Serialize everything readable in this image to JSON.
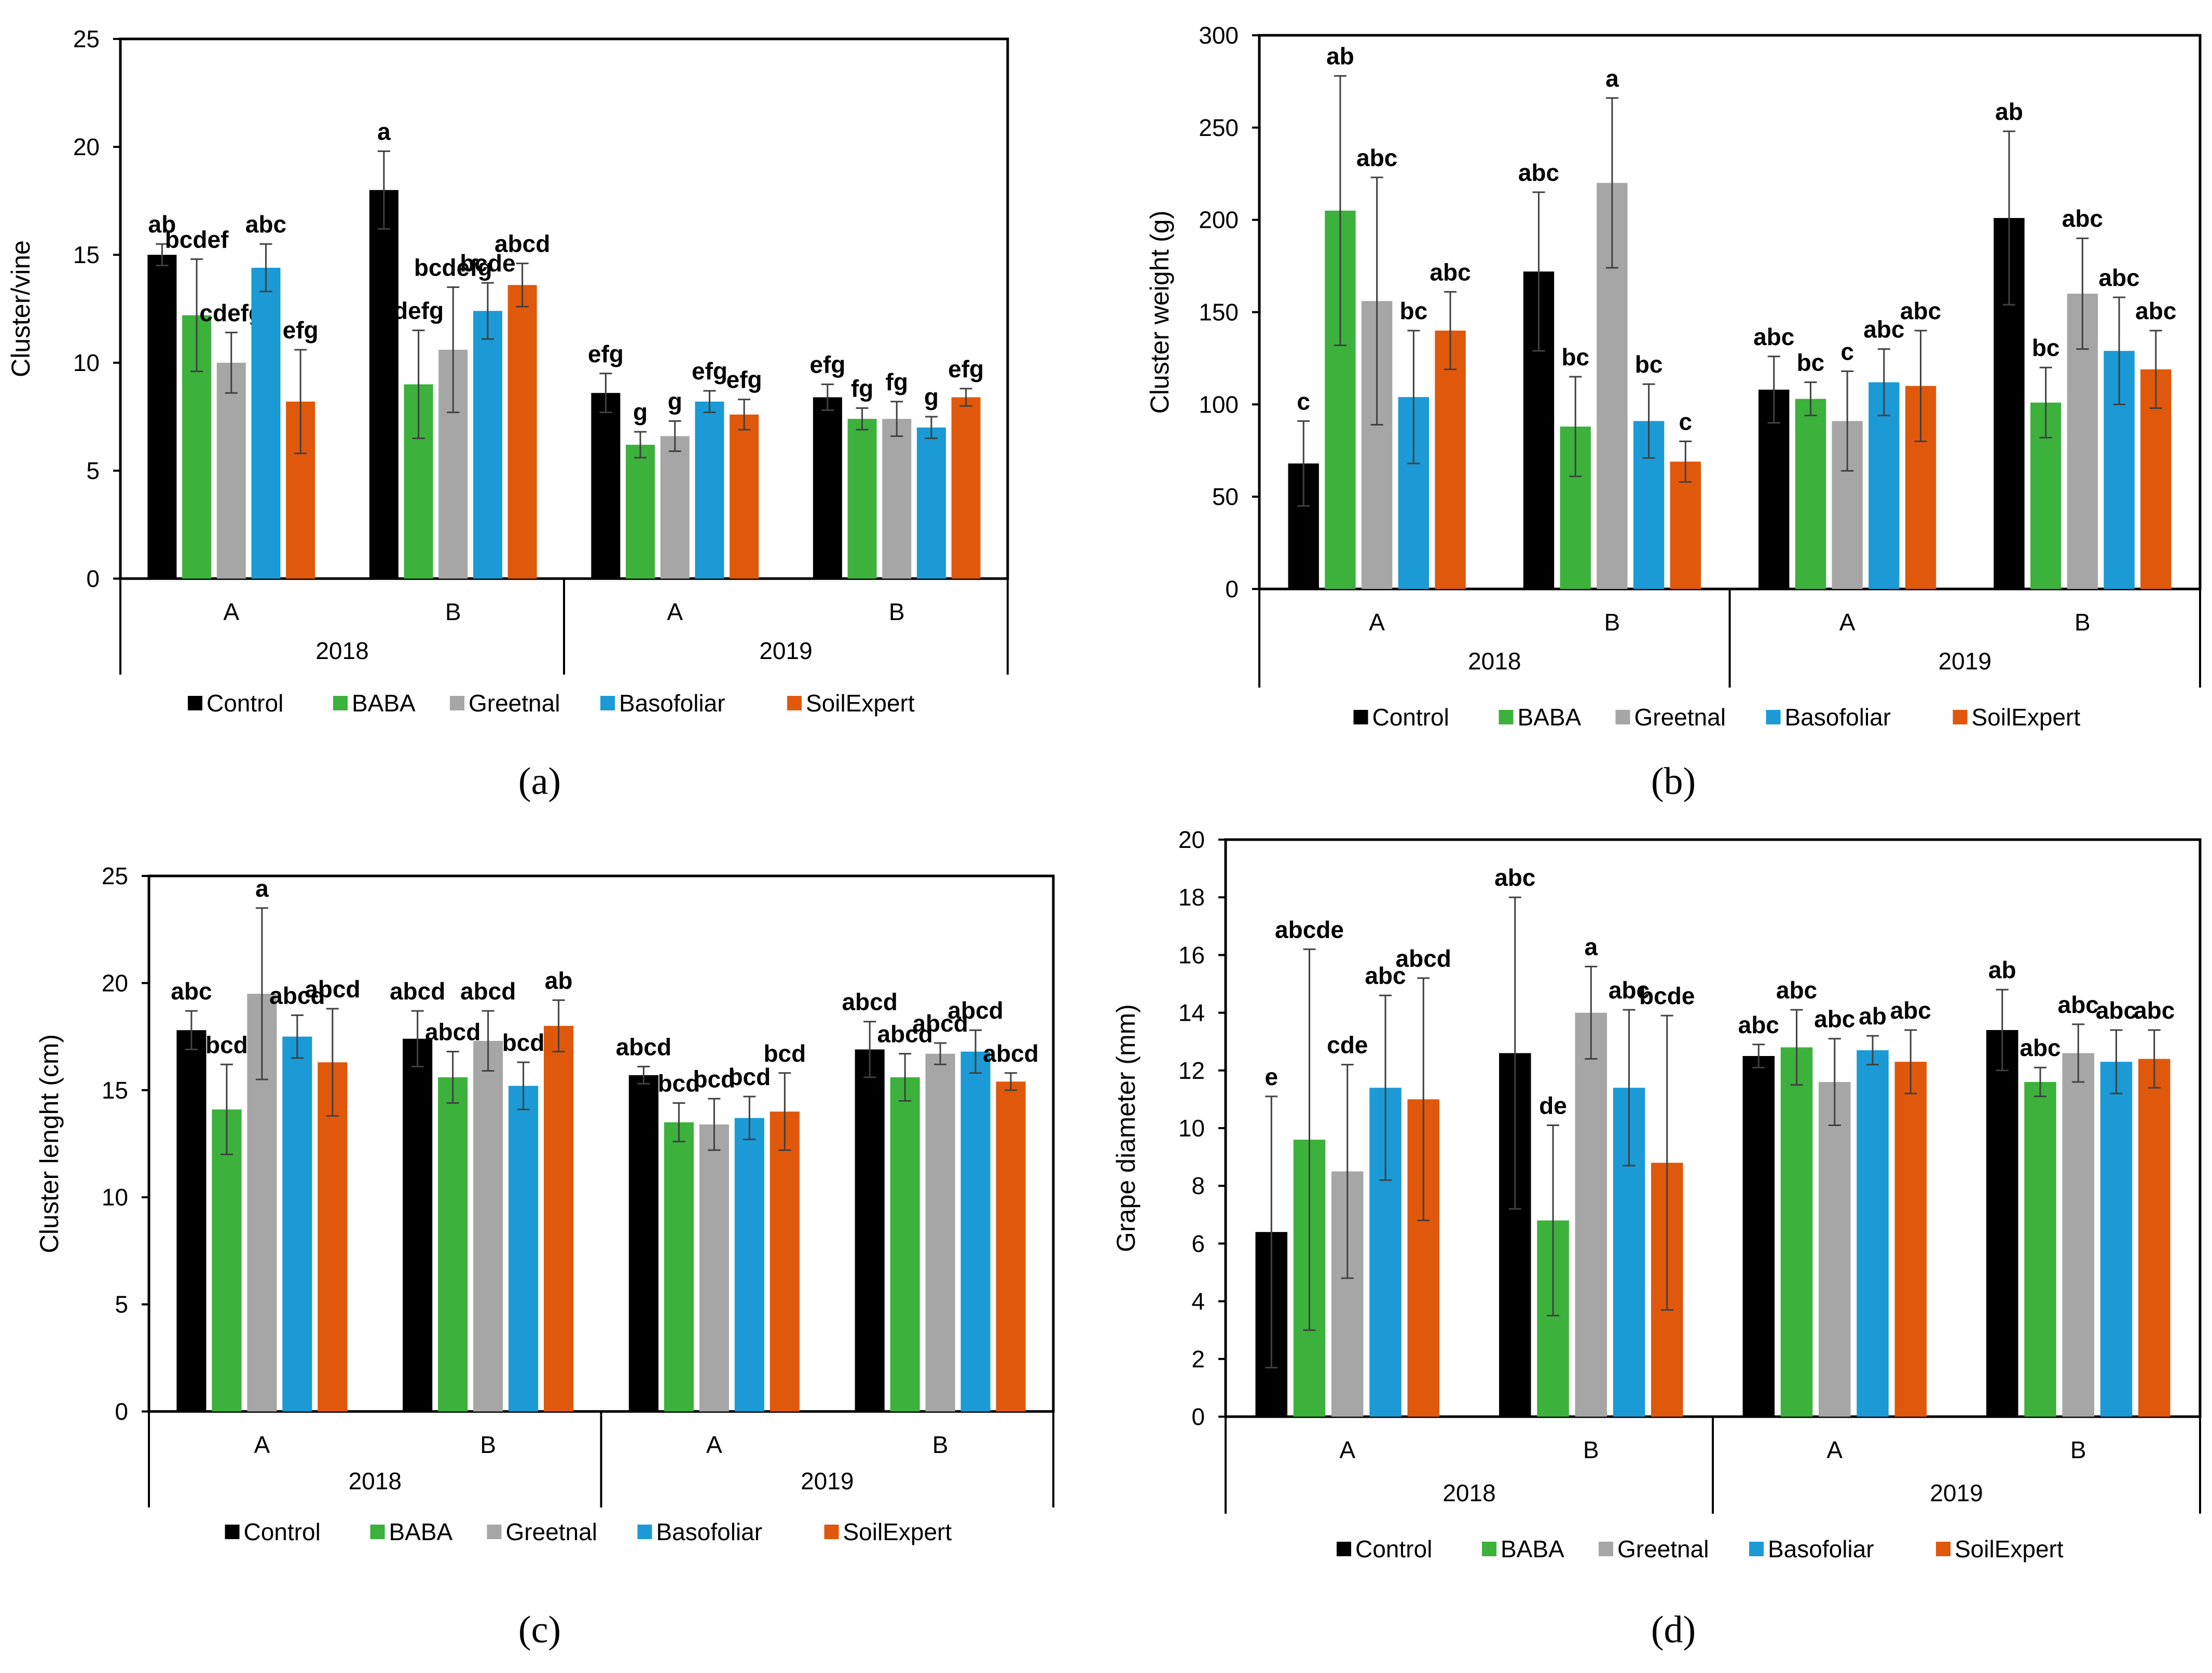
{
  "colors": {
    "Control": "#000000",
    "BABA": "#3cb13c",
    "Greetnal": "#a6a6a6",
    "Basofoliar": "#1b9ad6",
    "SoilExpert": "#e0580c",
    "axis": "#000000",
    "errorbar": "#404040"
  },
  "chart_data": [
    {
      "type": "bar",
      "panel_label": "a",
      "ylabel": "Cluster/vine",
      "xlabel": "",
      "ylim": [
        0,
        25
      ],
      "ytick_step": 5,
      "grid": false,
      "legend_position": "bottom",
      "groups": [
        "2018",
        "2019"
      ],
      "categories": [
        "A",
        "B"
      ],
      "series_names": [
        "Control",
        "BABA",
        "Greetnal",
        "Basofoliar",
        "SoilExpert"
      ],
      "clusters": [
        {
          "group": "2018",
          "label": "A",
          "values": [
            15.0,
            12.2,
            10.0,
            14.4,
            8.2
          ],
          "errors": [
            0.5,
            2.6,
            1.4,
            1.1,
            2.4
          ],
          "letters": [
            "ab",
            "bcdef",
            "cdefg",
            "abc",
            "efg"
          ]
        },
        {
          "group": "2018",
          "label": "B",
          "values": [
            18.0,
            9.0,
            10.6,
            12.4,
            13.6
          ],
          "errors": [
            1.8,
            2.5,
            2.9,
            1.3,
            1.0
          ],
          "letters": [
            "a",
            "defg",
            "bcdefg",
            "bcde",
            "abcd"
          ]
        },
        {
          "group": "2019",
          "label": "A",
          "values": [
            8.6,
            6.2,
            6.6,
            8.2,
            7.6
          ],
          "errors": [
            0.9,
            0.6,
            0.7,
            0.5,
            0.7
          ],
          "letters": [
            "efg",
            "g",
            "g",
            "efg",
            "efg"
          ]
        },
        {
          "group": "2019",
          "label": "B",
          "values": [
            8.4,
            7.4,
            7.4,
            7.0,
            8.4
          ],
          "errors": [
            0.6,
            0.5,
            0.8,
            0.5,
            0.4
          ],
          "letters": [
            "efg",
            "fg",
            "fg",
            "g",
            "efg"
          ]
        }
      ]
    },
    {
      "type": "bar",
      "panel_label": "b",
      "ylabel": "Cluster weight (g)",
      "xlabel": "",
      "ylim": [
        0,
        300
      ],
      "ytick_step": 50,
      "grid": false,
      "legend_position": "bottom",
      "groups": [
        "2018",
        "2019"
      ],
      "categories": [
        "A",
        "B"
      ],
      "series_names": [
        "Control",
        "BABA",
        "Greetnal",
        "Basofoliar",
        "SoilExpert"
      ],
      "clusters": [
        {
          "group": "2018",
          "label": "A",
          "values": [
            68,
            205,
            156,
            104,
            140
          ],
          "errors": [
            23,
            73,
            67,
            36,
            21
          ],
          "letters": [
            "c",
            "ab",
            "abc",
            "bc",
            "abc"
          ]
        },
        {
          "group": "2018",
          "label": "B",
          "values": [
            172,
            88,
            220,
            91,
            69
          ],
          "errors": [
            43,
            27,
            46,
            20,
            11
          ],
          "letters": [
            "abc",
            "bc",
            "a",
            "bc",
            "c"
          ]
        },
        {
          "group": "2019",
          "label": "A",
          "values": [
            108,
            103,
            91,
            112,
            110
          ],
          "errors": [
            18,
            9,
            27,
            18,
            30
          ],
          "letters": [
            "abc",
            "bc",
            "c",
            "abc",
            "abc"
          ]
        },
        {
          "group": "2019",
          "label": "B",
          "values": [
            201,
            101,
            160,
            129,
            119
          ],
          "errors": [
            47,
            19,
            30,
            29,
            21
          ],
          "letters": [
            "ab",
            "bc",
            "abc",
            "abc",
            "abc"
          ]
        }
      ]
    },
    {
      "type": "bar",
      "panel_label": "c",
      "ylabel": "Cluster lenght (cm)",
      "xlabel": "",
      "ylim": [
        0,
        25
      ],
      "ytick_step": 5,
      "grid": false,
      "legend_position": "bottom",
      "groups": [
        "2018",
        "2019"
      ],
      "categories": [
        "A",
        "B"
      ],
      "series_names": [
        "Control",
        "BABA",
        "Greetnal",
        "Basofoliar",
        "SoilExpert"
      ],
      "clusters": [
        {
          "group": "2018",
          "label": "A",
          "values": [
            17.8,
            14.1,
            19.5,
            17.5,
            16.3
          ],
          "errors": [
            0.9,
            2.1,
            4.0,
            1.0,
            2.5
          ],
          "letters": [
            "abc",
            "bcd",
            "a",
            "abcd",
            "abcd"
          ]
        },
        {
          "group": "2018",
          "label": "B",
          "values": [
            17.4,
            15.6,
            17.3,
            15.2,
            18.0
          ],
          "errors": [
            1.3,
            1.2,
            1.4,
            1.1,
            1.2
          ],
          "letters": [
            "abcd",
            "abcd",
            "abcd",
            "bcd",
            "ab"
          ]
        },
        {
          "group": "2019",
          "label": "A",
          "values": [
            15.7,
            13.5,
            13.4,
            13.7,
            14.0
          ],
          "errors": [
            0.4,
            0.9,
            1.2,
            1.0,
            1.8
          ],
          "letters": [
            "abcd",
            "bcd",
            "bcd",
            "bcd",
            "bcd"
          ]
        },
        {
          "group": "2019",
          "label": "B",
          "values": [
            16.9,
            15.6,
            16.7,
            16.8,
            15.4
          ],
          "errors": [
            1.3,
            1.1,
            0.5,
            1.0,
            0.4
          ],
          "letters": [
            "abcd",
            "abcd",
            "abcd",
            "abcd",
            "abcd"
          ]
        }
      ]
    },
    {
      "type": "bar",
      "panel_label": "d",
      "ylabel": "Grape diameter (mm)",
      "xlabel": "",
      "ylim": [
        0,
        20
      ],
      "ytick_step": 2,
      "grid": false,
      "legend_position": "bottom",
      "groups": [
        "2018",
        "2019"
      ],
      "categories": [
        "A",
        "B"
      ],
      "series_names": [
        "Control",
        "BABA",
        "Greetnal",
        "Basofoliar",
        "SoilExpert"
      ],
      "clusters": [
        {
          "group": "2018",
          "label": "A",
          "values": [
            6.4,
            9.6,
            8.5,
            11.4,
            11.0
          ],
          "errors": [
            4.7,
            6.6,
            3.7,
            3.2,
            4.2
          ],
          "letters": [
            "e",
            "abcde",
            "cde",
            "abc",
            "abcd"
          ]
        },
        {
          "group": "2018",
          "label": "B",
          "values": [
            12.6,
            6.8,
            14.0,
            11.4,
            8.8
          ],
          "errors": [
            5.4,
            3.3,
            1.6,
            2.7,
            5.1
          ],
          "letters": [
            "abc",
            "de",
            "a",
            "abc",
            "bcde"
          ]
        },
        {
          "group": "2019",
          "label": "A",
          "values": [
            12.5,
            12.8,
            11.6,
            12.7,
            12.3
          ],
          "errors": [
            0.4,
            1.3,
            1.5,
            0.5,
            1.1
          ],
          "letters": [
            "abc",
            "abc",
            "abc",
            "ab",
            "abc"
          ]
        },
        {
          "group": "2019",
          "label": "B",
          "values": [
            13.4,
            11.6,
            12.6,
            12.3,
            12.4
          ],
          "errors": [
            1.4,
            0.5,
            1.0,
            1.1,
            1.0
          ],
          "letters": [
            "ab",
            "abc",
            "abc",
            "abc",
            "abc"
          ]
        }
      ]
    }
  ],
  "captions": [
    "(a)",
    "(b)",
    "(c)",
    "(d)"
  ]
}
